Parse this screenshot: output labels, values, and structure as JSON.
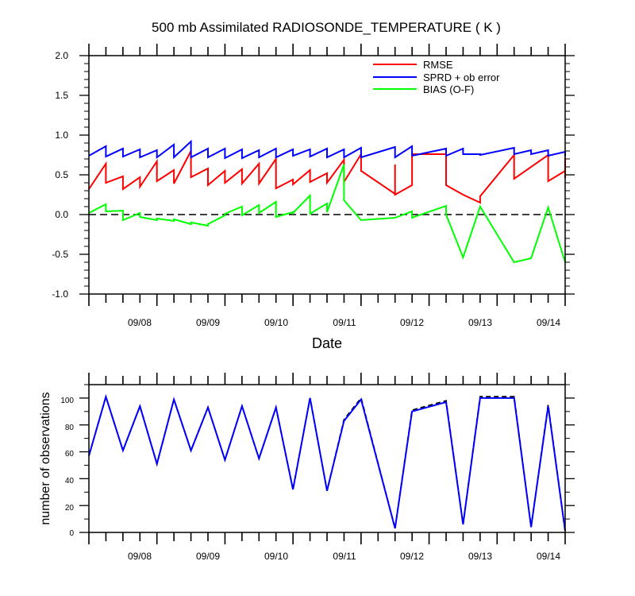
{
  "chart_data": [
    {
      "type": "line",
      "title": "500 mb Assimilated RADIOSONDE_TEMPERATURE ( K )",
      "xlabel": "Date",
      "ylabel": "",
      "ylim": [
        -1.0,
        2.0
      ],
      "yticks": [
        "2.0",
        "1.5",
        "1.0",
        "0.5",
        "0.0",
        "-0.5",
        "-1.0"
      ],
      "xticks": [
        "09/08",
        "09/09",
        "09/10",
        "09/11",
        "09/12",
        "09/13",
        "09/14"
      ],
      "zero_line": "dashed",
      "legend_position": "top-right",
      "series": [
        {
          "name": "RMSE",
          "color": "#ff0000",
          "x": [
            0.0,
            0.25,
            0.25,
            0.5,
            0.5,
            0.75,
            0.75,
            1.0,
            1.0,
            1.25,
            1.25,
            1.5,
            1.5,
            1.75,
            1.75,
            2.0,
            2.0,
            2.25,
            2.25,
            2.5,
            2.5,
            2.75,
            2.75,
            3.0,
            3.0,
            3.25,
            3.25,
            3.5,
            3.5,
            3.75,
            3.75,
            4.0,
            4.0,
            4.5,
            4.5,
            4.5,
            4.75,
            4.75,
            5.25,
            5.25,
            5.5,
            5.75,
            5.75,
            6.25,
            6.25,
            6.75,
            6.75,
            7.0,
            7.0,
            7.25,
            7.25
          ],
          "y": [
            0.32,
            0.64,
            0.4,
            0.48,
            0.32,
            0.47,
            0.35,
            0.67,
            0.42,
            0.56,
            0.39,
            0.8,
            0.47,
            0.58,
            0.37,
            0.55,
            0.4,
            0.57,
            0.39,
            0.64,
            0.39,
            0.7,
            0.33,
            0.44,
            0.38,
            0.56,
            0.41,
            0.52,
            0.4,
            0.69,
            0.41,
            0.76,
            0.55,
            0.26,
            0.63,
            0.25,
            0.37,
            0.76,
            0.76,
            0.37,
            0.25,
            0.15,
            0.23,
            0.75,
            0.45,
            0.75,
            0.42,
            0.55,
            0.46,
            0.72,
            0.48
          ]
        },
        {
          "name": "SPRD + ob error",
          "color": "#0000ff",
          "x": [
            0.0,
            0.25,
            0.25,
            0.5,
            0.5,
            0.75,
            0.75,
            1.0,
            1.0,
            1.25,
            1.25,
            1.5,
            1.5,
            1.75,
            1.75,
            2.0,
            2.0,
            2.25,
            2.25,
            2.5,
            2.5,
            2.75,
            2.75,
            3.0,
            3.0,
            3.25,
            3.25,
            3.5,
            3.5,
            3.75,
            3.75,
            4.0,
            4.0,
            4.5,
            4.5,
            4.75,
            4.75,
            5.25,
            5.25,
            5.5,
            5.5,
            5.75,
            5.75,
            6.25,
            6.25,
            6.5,
            6.5,
            6.75,
            6.75,
            7.0,
            7.0,
            7.25
          ],
          "y": [
            0.74,
            0.86,
            0.73,
            0.83,
            0.73,
            0.82,
            0.72,
            0.81,
            0.72,
            0.88,
            0.72,
            0.92,
            0.72,
            0.83,
            0.72,
            0.83,
            0.71,
            0.82,
            0.71,
            0.81,
            0.72,
            0.83,
            0.72,
            0.82,
            0.74,
            0.82,
            0.73,
            0.83,
            0.72,
            0.82,
            0.72,
            0.84,
            0.72,
            0.85,
            0.72,
            0.86,
            0.74,
            0.83,
            0.74,
            0.83,
            0.76,
            0.76,
            0.75,
            0.84,
            0.76,
            0.81,
            0.76,
            0.81,
            0.74,
            0.79,
            0.74,
            0.73
          ]
        },
        {
          "name": "BIAS (O-F)",
          "color": "#00ff00",
          "x": [
            0.0,
            0.25,
            0.25,
            0.5,
            0.5,
            0.75,
            0.75,
            1.0,
            1.0,
            1.25,
            1.25,
            1.5,
            1.5,
            1.75,
            1.75,
            2.0,
            2.0,
            2.25,
            2.25,
            2.5,
            2.5,
            2.75,
            2.75,
            3.0,
            3.0,
            3.25,
            3.25,
            3.5,
            3.5,
            3.75,
            3.75,
            4.0,
            4.0,
            4.5,
            4.5,
            4.75,
            4.75,
            5.25,
            5.25,
            5.5,
            5.75,
            6.25,
            6.5,
            6.75,
            7.0,
            7.25
          ],
          "y": [
            0.02,
            0.13,
            0.04,
            0.05,
            -0.07,
            0.02,
            -0.03,
            -0.07,
            -0.05,
            -0.08,
            -0.06,
            -0.12,
            -0.1,
            -0.14,
            -0.12,
            -0.01,
            0.01,
            0.1,
            -0.01,
            0.12,
            0.02,
            0.16,
            -0.03,
            0.03,
            0.02,
            0.24,
            0.01,
            0.14,
            0.03,
            0.63,
            0.18,
            -0.07,
            -0.07,
            -0.04,
            -0.04,
            0.04,
            -0.04,
            0.11,
            0.0,
            -0.54,
            0.1,
            -0.6,
            -0.55,
            0.09,
            -0.6,
            -0.6
          ]
        }
      ]
    },
    {
      "type": "line",
      "title": "",
      "xlabel": "",
      "ylabel": "number of observations",
      "ylim": [
        0,
        110
      ],
      "yticks": [
        "100",
        "80",
        "60",
        "40",
        "20",
        "0"
      ],
      "xticks": [
        "09/08",
        "09/09",
        "09/10",
        "09/11",
        "09/12",
        "09/13",
        "09/14"
      ],
      "series": [
        {
          "color": "#000000",
          "line_style": "dashed",
          "x": [
            0,
            0.25,
            0.5,
            0.75,
            1.0,
            1.25,
            1.5,
            1.75,
            2.0,
            2.25,
            2.5,
            2.75,
            3.0,
            3.25,
            3.5,
            3.75,
            4.0,
            4.5,
            4.75,
            5.25,
            5.5,
            5.75,
            6.0,
            6.25,
            6.5,
            6.75,
            7.0,
            7.25
          ],
          "y": [
            57,
            101,
            61,
            94,
            51,
            99,
            61,
            93,
            54,
            94,
            55,
            93,
            32,
            100,
            31,
            84,
            100,
            3,
            91,
            98,
            6,
            101,
            101,
            101,
            4,
            95,
            1,
            1
          ]
        },
        {
          "color": "#0000ff",
          "x": [
            0,
            0.25,
            0.5,
            0.75,
            1.0,
            1.25,
            1.5,
            1.75,
            2.0,
            2.25,
            2.5,
            2.75,
            3.0,
            3.25,
            3.5,
            3.75,
            4.0,
            4.5,
            4.75,
            5.25,
            5.5,
            5.75,
            6.0,
            6.25,
            6.5,
            6.75,
            7.0,
            7.25
          ],
          "y": [
            57,
            101,
            61,
            94,
            51,
            99,
            61,
            93,
            54,
            94,
            55,
            93,
            32,
            100,
            31,
            83,
            99,
            3,
            90,
            97,
            6,
            100,
            100,
            100,
            4,
            94,
            1,
            1
          ]
        }
      ]
    }
  ]
}
